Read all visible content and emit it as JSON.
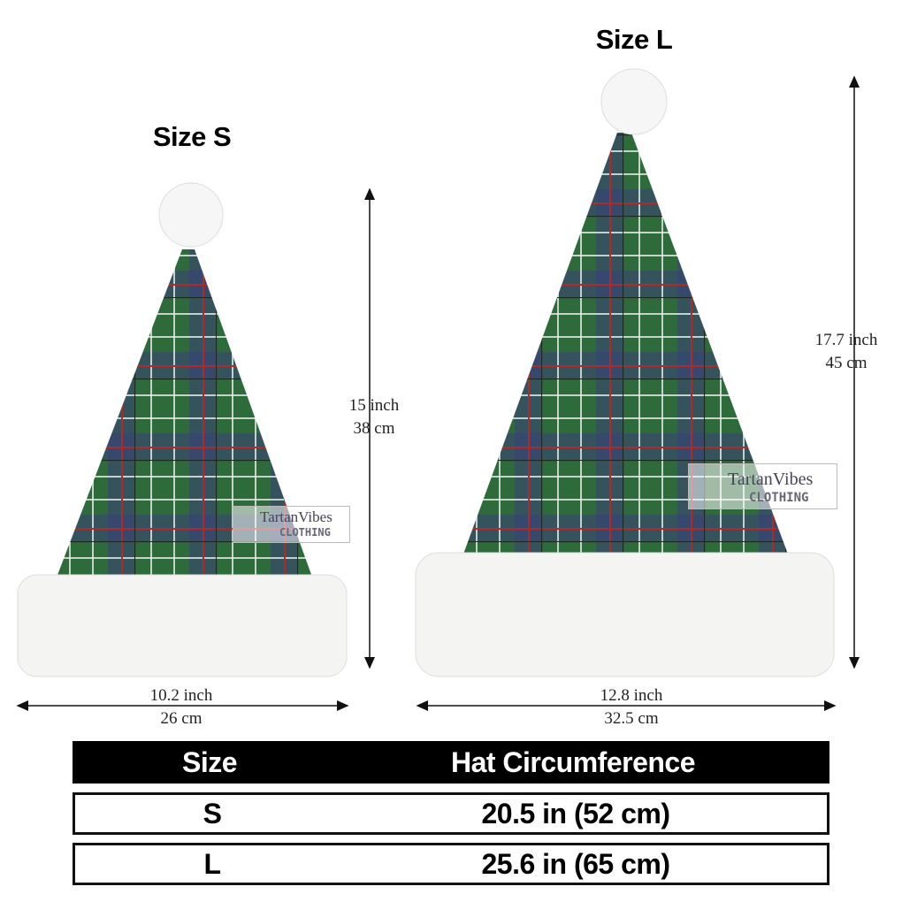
{
  "sizes": {
    "small": {
      "title": "Size S",
      "height_in": "15 inch",
      "height_cm": "38 cm",
      "width_in": "10.2 inch",
      "width_cm": "26 cm"
    },
    "large": {
      "title": "Size L",
      "height_in": "17.7 inch",
      "height_cm": "45 cm",
      "width_in": "12.8 inch",
      "width_cm": "32.5 cm"
    }
  },
  "watermark": {
    "brand": "TartanVibes",
    "sub": "CLOTHING"
  },
  "table": {
    "headers": [
      "Size",
      "Hat Circumference"
    ],
    "rows": [
      {
        "size": "S",
        "circumference": "20.5 in (52 cm)"
      },
      {
        "size": "L",
        "circumference": "25.6 in (65 cm)"
      }
    ]
  },
  "colors": {
    "tartan_green": "#2d6b3a",
    "tartan_blue": "#3a3f7a",
    "tartan_red": "#b02a2a",
    "fur": "#f4f4f2"
  }
}
